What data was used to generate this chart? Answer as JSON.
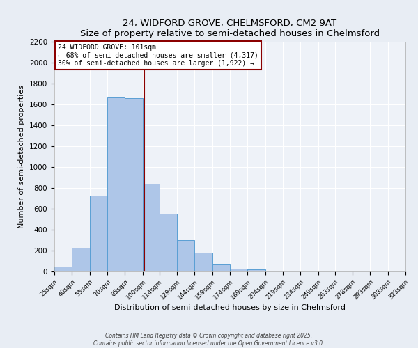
{
  "title": "24, WIDFORD GROVE, CHELMSFORD, CM2 9AT",
  "subtitle": "Size of property relative to semi-detached houses in Chelmsford",
  "xlabel": "Distribution of semi-detached houses by size in Chelmsford",
  "ylabel": "Number of semi-detached properties",
  "bar_edges": [
    25,
    40,
    55,
    70,
    85,
    100,
    114,
    129,
    144,
    159,
    174,
    189,
    204,
    219,
    234,
    249,
    263,
    278,
    293,
    308,
    323
  ],
  "bar_heights": [
    45,
    225,
    730,
    1670,
    1660,
    840,
    555,
    300,
    180,
    65,
    30,
    20,
    5,
    0,
    0,
    0,
    0,
    0,
    0,
    0
  ],
  "bar_color": "#aec6e8",
  "bar_edge_color": "#5a9fd4",
  "vline_color": "#8b0000",
  "vline_x": 101,
  "annotation_title": "24 WIDFORD GROVE: 101sqm",
  "annotation_line1": "← 68% of semi-detached houses are smaller (4,317)",
  "annotation_line2": "30% of semi-detached houses are larger (1,922) →",
  "annotation_box_color": "#8b0000",
  "ylim": [
    0,
    2200
  ],
  "yticks": [
    0,
    200,
    400,
    600,
    800,
    1000,
    1200,
    1400,
    1600,
    1800,
    2000,
    2200
  ],
  "bg_color": "#e8edf4",
  "plot_bg_color": "#eef2f8",
  "footer_line1": "Contains HM Land Registry data © Crown copyright and database right 2025.",
  "footer_line2": "Contains public sector information licensed under the Open Government Licence v3.0."
}
